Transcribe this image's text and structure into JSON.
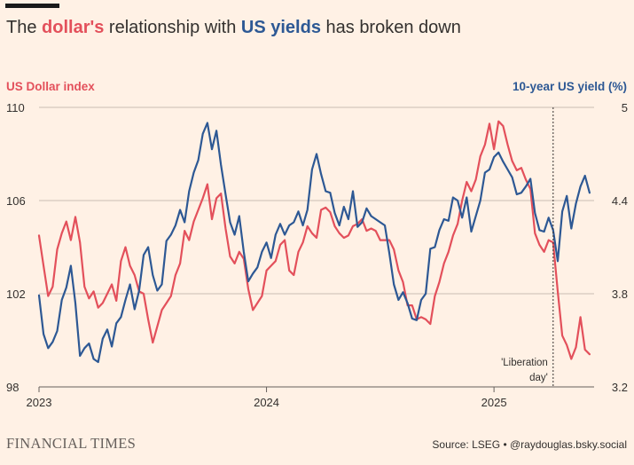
{
  "header": {
    "title_parts": [
      "The ",
      "dollar's",
      " relationship with ",
      "US yields",
      " has broken down"
    ]
  },
  "colors": {
    "dollar": "#E3505B",
    "yield": "#2D5894",
    "grid": "#C9BDB4",
    "text": "#33302E"
  },
  "footer": {
    "brand": "FINANCIAL TIMES",
    "source": "Source: LSEG • @raydouglas.bsky.social"
  },
  "chart_data": {
    "type": "line",
    "left_axis": {
      "label": "US Dollar index",
      "ylim": [
        98,
        110
      ],
      "ticks": [
        "110",
        "106",
        "102",
        "98"
      ]
    },
    "right_axis": {
      "label": "10-year US yield (%)",
      "ylim": [
        3.2,
        5.0
      ],
      "ticks": [
        "5",
        "4.4",
        "3.8",
        "3.2"
      ]
    },
    "x_ticks": [
      "2023",
      "2024",
      "2025"
    ],
    "x_range": [
      2023.0,
      2025.44
    ],
    "annotation": {
      "x": 2025.26,
      "lines": [
        "'Liberation",
        "day'"
      ]
    },
    "series": [
      {
        "name": "US Dollar index",
        "axis": "left",
        "x": [
          2023.0,
          2023.02,
          2023.04,
          2023.06,
          2023.08,
          2023.1,
          2023.12,
          2023.14,
          2023.16,
          2023.18,
          2023.2,
          2023.22,
          2023.24,
          2023.26,
          2023.28,
          2023.3,
          2023.32,
          2023.34,
          2023.36,
          2023.38,
          2023.4,
          2023.42,
          2023.44,
          2023.46,
          2023.48,
          2023.5,
          2023.52,
          2023.54,
          2023.56,
          2023.58,
          2023.6,
          2023.62,
          2023.64,
          2023.66,
          2023.68,
          2023.7,
          2023.72,
          2023.74,
          2023.76,
          2023.78,
          2023.8,
          2023.82,
          2023.84,
          2023.86,
          2023.88,
          2023.9,
          2023.92,
          2023.94,
          2023.96,
          2023.98,
          2024.0,
          2024.02,
          2024.04,
          2024.06,
          2024.08,
          2024.1,
          2024.12,
          2024.14,
          2024.16,
          2024.18,
          2024.2,
          2024.22,
          2024.24,
          2024.26,
          2024.28,
          2024.3,
          2024.32,
          2024.34,
          2024.36,
          2024.38,
          2024.4,
          2024.42,
          2024.44,
          2024.46,
          2024.48,
          2024.5,
          2024.52,
          2024.54,
          2024.56,
          2024.58,
          2024.6,
          2024.62,
          2024.64,
          2024.66,
          2024.68,
          2024.7,
          2024.72,
          2024.74,
          2024.76,
          2024.78,
          2024.8,
          2024.82,
          2024.84,
          2024.86,
          2024.88,
          2024.9,
          2024.92,
          2024.94,
          2024.96,
          2024.98,
          2025.0,
          2025.02,
          2025.04,
          2025.06,
          2025.08,
          2025.1,
          2025.12,
          2025.14,
          2025.16,
          2025.18,
          2025.2,
          2025.22,
          2025.24,
          2025.26,
          2025.28,
          2025.3,
          2025.32,
          2025.34,
          2025.36,
          2025.38,
          2025.4,
          2025.42
        ],
        "values": [
          104.5,
          103.2,
          101.9,
          102.3,
          103.9,
          104.6,
          105.1,
          104.3,
          105.3,
          104.2,
          102.3,
          101.8,
          102.1,
          101.4,
          101.6,
          102.0,
          102.4,
          101.7,
          103.4,
          104.0,
          103.2,
          102.8,
          102.1,
          102.0,
          100.9,
          99.9,
          100.6,
          101.3,
          101.6,
          101.9,
          102.8,
          103.3,
          104.7,
          104.3,
          105.1,
          105.6,
          106.1,
          106.7,
          105.2,
          106.1,
          106.3,
          104.8,
          103.6,
          103.3,
          103.8,
          103.5,
          102.2,
          101.3,
          101.6,
          101.9,
          103.0,
          103.2,
          103.4,
          104.1,
          104.3,
          103.0,
          102.8,
          103.8,
          104.2,
          104.9,
          104.6,
          104.4,
          105.6,
          105.7,
          105.5,
          104.9,
          104.6,
          104.4,
          104.5,
          104.9,
          105.0,
          105.2,
          104.7,
          104.8,
          104.7,
          104.3,
          104.3,
          104.3,
          103.9,
          103.0,
          102.5,
          101.5,
          101.5,
          100.9,
          101.0,
          100.9,
          100.7,
          101.9,
          102.5,
          103.3,
          103.8,
          104.5,
          105.0,
          106.0,
          106.8,
          106.4,
          106.9,
          107.9,
          108.4,
          109.3,
          108.2,
          109.4,
          109.2,
          108.4,
          107.7,
          107.3,
          107.4,
          106.9,
          106.5,
          104.6,
          104.1,
          103.8,
          104.3,
          104.2,
          102.1,
          100.2,
          99.8,
          99.2,
          99.7,
          101.0,
          99.6,
          99.4
        ]
      },
      {
        "name": "10-year US yield (%)",
        "axis": "right",
        "x": [
          2023.0,
          2023.02,
          2023.04,
          2023.06,
          2023.08,
          2023.1,
          2023.12,
          2023.14,
          2023.16,
          2023.18,
          2023.2,
          2023.22,
          2023.24,
          2023.26,
          2023.28,
          2023.3,
          2023.32,
          2023.34,
          2023.36,
          2023.38,
          2023.4,
          2023.42,
          2023.44,
          2023.46,
          2023.48,
          2023.5,
          2023.52,
          2023.54,
          2023.56,
          2023.58,
          2023.6,
          2023.62,
          2023.64,
          2023.66,
          2023.68,
          2023.7,
          2023.72,
          2023.74,
          2023.76,
          2023.78,
          2023.8,
          2023.82,
          2023.84,
          2023.86,
          2023.88,
          2023.9,
          2023.92,
          2023.94,
          2023.96,
          2023.98,
          2024.0,
          2024.02,
          2024.04,
          2024.06,
          2024.08,
          2024.1,
          2024.12,
          2024.14,
          2024.16,
          2024.18,
          2024.2,
          2024.22,
          2024.24,
          2024.26,
          2024.28,
          2024.3,
          2024.32,
          2024.34,
          2024.36,
          2024.38,
          2024.4,
          2024.42,
          2024.44,
          2024.46,
          2024.48,
          2024.5,
          2024.52,
          2024.54,
          2024.56,
          2024.58,
          2024.6,
          2024.62,
          2024.64,
          2024.66,
          2024.68,
          2024.7,
          2024.72,
          2024.74,
          2024.76,
          2024.78,
          2024.8,
          2024.82,
          2024.84,
          2024.86,
          2024.88,
          2024.9,
          2024.92,
          2024.94,
          2024.96,
          2024.98,
          2025.0,
          2025.02,
          2025.04,
          2025.06,
          2025.08,
          2025.1,
          2025.12,
          2025.14,
          2025.16,
          2025.18,
          2025.2,
          2025.22,
          2025.24,
          2025.26,
          2025.28,
          2025.3,
          2025.32,
          2025.34,
          2025.36,
          2025.38,
          2025.4,
          2025.42
        ],
        "values": [
          3.79,
          3.54,
          3.45,
          3.49,
          3.56,
          3.76,
          3.84,
          3.98,
          3.74,
          3.4,
          3.45,
          3.48,
          3.38,
          3.36,
          3.51,
          3.57,
          3.46,
          3.61,
          3.65,
          3.76,
          3.86,
          3.7,
          3.82,
          4.05,
          4.1,
          3.92,
          3.82,
          3.86,
          4.14,
          4.18,
          4.24,
          4.34,
          4.26,
          4.46,
          4.58,
          4.66,
          4.83,
          4.9,
          4.73,
          4.85,
          4.63,
          4.44,
          4.26,
          4.18,
          4.3,
          4.07,
          3.88,
          3.93,
          3.97,
          4.07,
          4.13,
          4.03,
          4.18,
          4.25,
          4.18,
          4.24,
          4.26,
          4.33,
          4.24,
          4.34,
          4.6,
          4.7,
          4.57,
          4.46,
          4.45,
          4.32,
          4.24,
          4.36,
          4.28,
          4.46,
          4.23,
          4.26,
          4.35,
          4.3,
          4.28,
          4.26,
          4.24,
          4.06,
          3.86,
          3.76,
          3.81,
          3.74,
          3.64,
          3.63,
          3.76,
          3.8,
          4.09,
          4.1,
          4.21,
          4.28,
          4.27,
          4.42,
          4.4,
          4.29,
          4.42,
          4.2,
          4.3,
          4.4,
          4.58,
          4.6,
          4.68,
          4.71,
          4.65,
          4.6,
          4.55,
          4.44,
          4.45,
          4.49,
          4.54,
          4.32,
          4.21,
          4.2,
          4.29,
          4.21,
          4.01,
          4.33,
          4.43,
          4.22,
          4.38,
          4.49,
          4.56,
          4.45
        ]
      }
    ]
  }
}
